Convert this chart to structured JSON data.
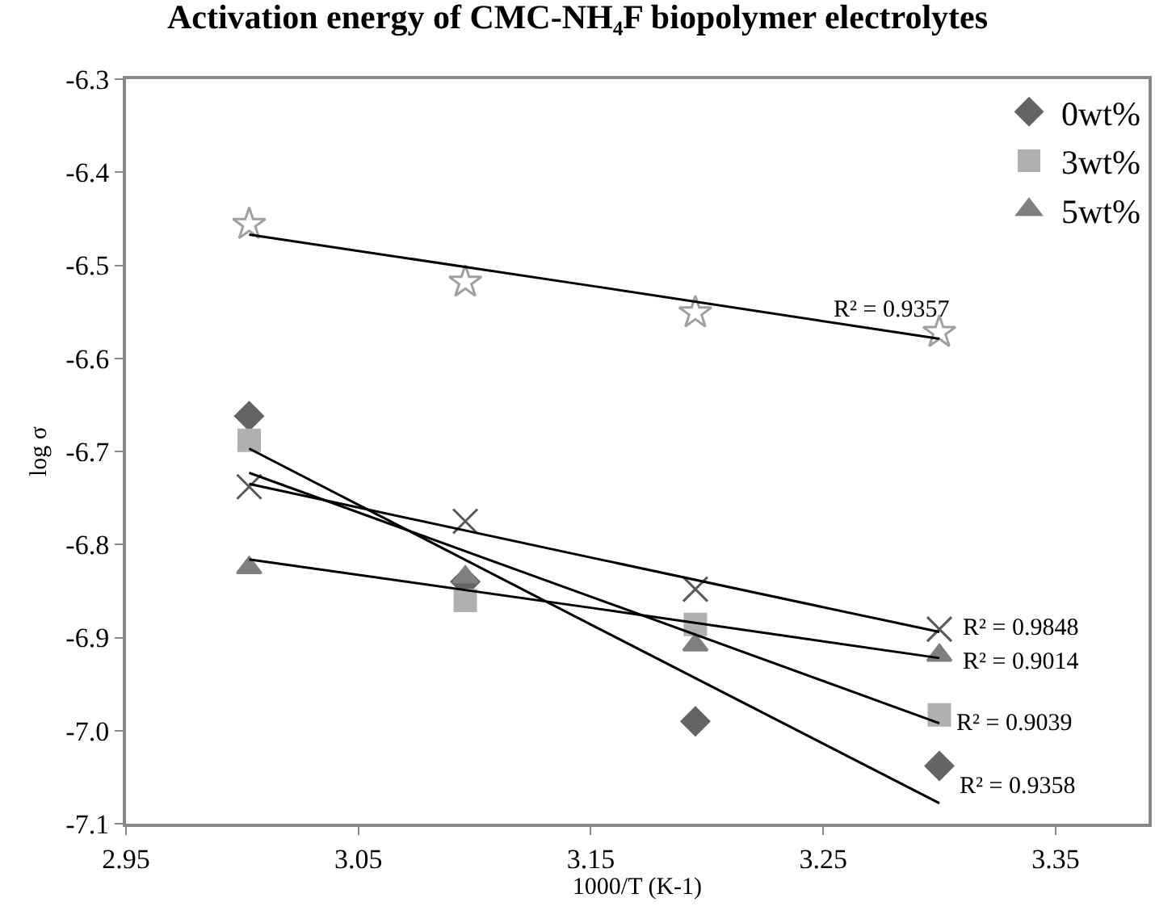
{
  "chart_data": {
    "type": "scatter",
    "title": "Activation energy of CMC-NH₄F biopolymer electrolytes",
    "xlabel": "1000/T (K-1)",
    "ylabel": "log σ",
    "x": [
      3.003,
      3.096,
      3.195,
      3.3
    ],
    "series": [
      {
        "name": "0wt%",
        "color": "#646464",
        "marker": "diamond",
        "values": [
          -6.662,
          -6.84,
          -6.99,
          -7.038
        ]
      },
      {
        "name": "3wt%",
        "color": "#b0b0b0",
        "marker": "square",
        "values": [
          -6.688,
          -6.86,
          -6.886,
          -6.983
        ]
      },
      {
        "name": "5wt%",
        "color": "#7f7f7f",
        "marker": "triangle",
        "values": [
          -6.825,
          -6.835,
          -6.908,
          -6.919
        ]
      },
      {
        "color": "#595959",
        "marker": "cross",
        "values": [
          -6.738,
          -6.775,
          -6.848,
          -6.891
        ]
      },
      {
        "color": "#a0a0a0",
        "marker": "star",
        "values": [
          -6.456,
          -6.518,
          -6.551,
          -6.572
        ]
      },
      {
        "type": "line",
        "color": "#000000",
        "marker": "none",
        "x": [
          3.003,
          3.15,
          3.3
        ],
        "values": [
          -6.697,
          -6.886,
          -7.078
        ]
      },
      {
        "type": "line",
        "color": "#000000",
        "marker": "none",
        "x": [
          3.003,
          3.15,
          3.3
        ],
        "values": [
          -6.723,
          -6.856,
          -6.992
        ]
      },
      {
        "type": "line",
        "color": "#000000",
        "marker": "none",
        "x": [
          3.003,
          3.15,
          3.3
        ],
        "values": [
          -6.816,
          -6.868,
          -6.922
        ]
      },
      {
        "type": "line",
        "color": "#000000",
        "marker": "none",
        "x": [
          3.003,
          3.15,
          3.3
        ],
        "values": [
          -6.735,
          -6.814,
          -6.894
        ]
      },
      {
        "type": "line",
        "color": "#000000",
        "marker": "none",
        "x": [
          3.003,
          3.15,
          3.3
        ],
        "values": [
          -6.467,
          -6.522,
          -6.579
        ]
      }
    ],
    "annotations": [
      "R² = 0.9357",
      "R² = 0.9848",
      "R² = 0.9014",
      "R² = 0.9039",
      "R² = 0.9358"
    ],
    "xlim": [
      2.95,
      3.39
    ],
    "xticks": [
      2.95,
      3.05,
      3.15,
      3.25,
      3.35
    ],
    "ylim": [
      -7.1,
      -6.3
    ],
    "yticks": [
      -6.3,
      -6.4,
      -6.5,
      -6.6,
      -6.7,
      -6.8,
      -6.9,
      {
        "value": -7.0,
        "label": "-7.0"
      },
      -7.1
    ],
    "legend": "top right"
  }
}
